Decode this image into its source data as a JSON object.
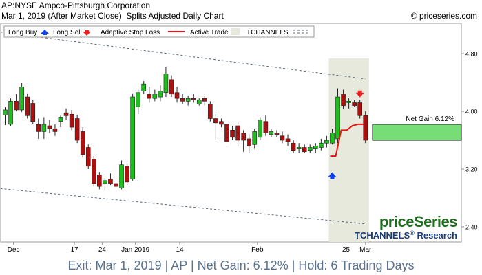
{
  "header": {
    "line1": "AP:NYSE Ampco-Pittsburgh Corporation",
    "line2": "Mar 1, 2019 (After Market Close)  Splits Adjusted Daily Chart",
    "copyright": "© priceseries.com"
  },
  "legend": {
    "long_buy": "Long Buy",
    "long_sell": "Long Sell",
    "adaptive_stop_loss": "Adaptive Stop Loss",
    "active_trade": "Active Trade",
    "tchannels": "TCHANNELS"
  },
  "colors": {
    "up_candle": "#22bb22",
    "down_candle": "#aa1111",
    "stop_loss": "#ee1111",
    "active_trade_band": "#e6e9dc",
    "gain_box": "#77dd77",
    "channel": "#556677",
    "buy_arrow": "#1144ee",
    "sell_arrow": "#ee2222",
    "brand": "#1f6b1f",
    "brand_sub": "#1a3d7a"
  },
  "branding": {
    "name": "priceSeries",
    "sub": "TCHANNELS",
    "reg": "®",
    "research": "Research"
  },
  "annotation": {
    "net_gain_label": "Net Gain 6.12%"
  },
  "banner": {
    "text": "Exit: Mar 1, 2019 | AP | Net Gain: 6.12% | Hold: 6 Trading Days"
  },
  "chart_data": {
    "type": "candlestick",
    "x_tick_labels": [
      "Dec",
      "17",
      "24",
      "Jan 2019",
      "14",
      "Feb",
      "25",
      "Mar"
    ],
    "y_tick_labels": [
      "4.80",
      "4.00",
      "3.20",
      "2.40"
    ],
    "y_ticks": [
      4.8,
      4.0,
      3.2,
      2.4
    ],
    "ylim": [
      2.19,
      5.22
    ],
    "grid": false,
    "legend_position": "top",
    "candles": [
      {
        "o": 3.95,
        "h": 4.06,
        "l": 3.81,
        "c": 4.02
      },
      {
        "o": 3.82,
        "h": 4.18,
        "l": 3.8,
        "c": 4.14
      },
      {
        "o": 4.14,
        "h": 4.24,
        "l": 4.0,
        "c": 4.02
      },
      {
        "o": 4.02,
        "h": 4.4,
        "l": 3.99,
        "c": 4.34
      },
      {
        "o": 4.2,
        "h": 4.25,
        "l": 3.9,
        "c": 3.94
      },
      {
        "o": 4.11,
        "h": 4.16,
        "l": 3.82,
        "c": 3.86
      },
      {
        "o": 3.82,
        "h": 3.9,
        "l": 3.62,
        "c": 3.72
      },
      {
        "o": 3.72,
        "h": 3.92,
        "l": 3.62,
        "c": 3.82
      },
      {
        "o": 3.8,
        "h": 3.88,
        "l": 3.7,
        "c": 3.76
      },
      {
        "o": 3.76,
        "h": 3.82,
        "l": 3.66,
        "c": 3.72
      },
      {
        "o": 3.86,
        "h": 3.94,
        "l": 3.78,
        "c": 3.92
      },
      {
        "o": 3.98,
        "h": 4.04,
        "l": 3.88,
        "c": 3.94
      },
      {
        "o": 3.96,
        "h": 4.02,
        "l": 3.74,
        "c": 3.78
      },
      {
        "o": 3.9,
        "h": 3.95,
        "l": 3.56,
        "c": 3.6
      },
      {
        "o": 3.72,
        "h": 3.78,
        "l": 3.36,
        "c": 3.4
      },
      {
        "o": 3.5,
        "h": 3.54,
        "l": 3.2,
        "c": 3.24
      },
      {
        "o": 3.34,
        "h": 3.38,
        "l": 2.96,
        "c": 3.0
      },
      {
        "o": 3.12,
        "h": 3.16,
        "l": 2.92,
        "c": 2.96
      },
      {
        "o": 3.0,
        "h": 3.08,
        "l": 2.9,
        "c": 3.04
      },
      {
        "o": 3.06,
        "h": 3.14,
        "l": 2.98,
        "c": 3.0
      },
      {
        "o": 3.0,
        "h": 3.08,
        "l": 2.8,
        "c": 2.96
      },
      {
        "o": 2.94,
        "h": 3.32,
        "l": 2.92,
        "c": 3.26
      },
      {
        "o": 3.24,
        "h": 3.28,
        "l": 2.98,
        "c": 3.02
      },
      {
        "o": 3.06,
        "h": 4.25,
        "l": 3.04,
        "c": 4.2
      },
      {
        "o": 4.06,
        "h": 4.3,
        "l": 3.96,
        "c": 4.26
      },
      {
        "o": 4.28,
        "h": 4.42,
        "l": 4.24,
        "c": 4.38
      },
      {
        "o": 4.24,
        "h": 4.34,
        "l": 4.12,
        "c": 4.18
      },
      {
        "o": 4.18,
        "h": 4.3,
        "l": 4.14,
        "c": 4.24
      },
      {
        "o": 4.2,
        "h": 4.36,
        "l": 4.14,
        "c": 4.28
      },
      {
        "o": 4.26,
        "h": 4.62,
        "l": 4.2,
        "c": 4.52
      },
      {
        "o": 4.44,
        "h": 4.5,
        "l": 4.2,
        "c": 4.24
      },
      {
        "o": 4.26,
        "h": 4.34,
        "l": 4.12,
        "c": 4.18
      },
      {
        "o": 4.18,
        "h": 4.24,
        "l": 4.1,
        "c": 4.14
      },
      {
        "o": 4.14,
        "h": 4.22,
        "l": 4.08,
        "c": 4.18
      },
      {
        "o": 4.18,
        "h": 4.24,
        "l": 4.12,
        "c": 4.16
      },
      {
        "o": 4.1,
        "h": 4.18,
        "l": 4.08,
        "c": 4.16
      },
      {
        "o": 4.18,
        "h": 4.22,
        "l": 4.08,
        "c": 4.14
      },
      {
        "o": 4.1,
        "h": 4.14,
        "l": 3.86,
        "c": 3.9
      },
      {
        "o": 3.9,
        "h": 3.96,
        "l": 3.6,
        "c": 3.84
      },
      {
        "o": 3.86,
        "h": 3.9,
        "l": 3.78,
        "c": 3.82
      },
      {
        "o": 3.82,
        "h": 3.86,
        "l": 3.54,
        "c": 3.58
      },
      {
        "o": 3.74,
        "h": 3.8,
        "l": 3.6,
        "c": 3.64
      },
      {
        "o": 3.8,
        "h": 3.86,
        "l": 3.52,
        "c": 3.6
      },
      {
        "o": 3.7,
        "h": 3.74,
        "l": 3.44,
        "c": 3.6
      },
      {
        "o": 3.62,
        "h": 3.68,
        "l": 3.42,
        "c": 3.52
      },
      {
        "o": 3.54,
        "h": 3.76,
        "l": 3.48,
        "c": 3.72
      },
      {
        "o": 3.64,
        "h": 3.92,
        "l": 3.6,
        "c": 3.88
      },
      {
        "o": 3.86,
        "h": 3.94,
        "l": 3.66,
        "c": 3.7
      },
      {
        "o": 3.68,
        "h": 3.76,
        "l": 3.64,
        "c": 3.72
      },
      {
        "o": 3.7,
        "h": 3.74,
        "l": 3.64,
        "c": 3.68
      },
      {
        "o": 3.66,
        "h": 3.72,
        "l": 3.56,
        "c": 3.6
      },
      {
        "o": 3.62,
        "h": 3.68,
        "l": 3.52,
        "c": 3.58
      },
      {
        "o": 3.56,
        "h": 3.6,
        "l": 3.42,
        "c": 3.46
      },
      {
        "o": 3.48,
        "h": 3.56,
        "l": 3.42,
        "c": 3.5
      },
      {
        "o": 3.5,
        "h": 3.54,
        "l": 3.42,
        "c": 3.44
      },
      {
        "o": 3.46,
        "h": 3.54,
        "l": 3.42,
        "c": 3.5
      },
      {
        "o": 3.48,
        "h": 3.56,
        "l": 3.42,
        "c": 3.52
      },
      {
        "o": 3.5,
        "h": 3.62,
        "l": 3.46,
        "c": 3.56
      },
      {
        "o": 3.56,
        "h": 3.66,
        "l": 3.5,
        "c": 3.6
      },
      {
        "o": 3.56,
        "h": 3.76,
        "l": 3.54,
        "c": 3.7
      },
      {
        "o": 3.62,
        "h": 4.32,
        "l": 3.56,
        "c": 4.2
      },
      {
        "o": 4.24,
        "h": 4.3,
        "l": 4.04,
        "c": 4.08
      },
      {
        "o": 4.12,
        "h": 4.18,
        "l": 4.04,
        "c": 4.14
      },
      {
        "o": 4.12,
        "h": 4.16,
        "l": 4.06,
        "c": 4.08
      },
      {
        "o": 4.12,
        "h": 4.16,
        "l": 3.9,
        "c": 3.94
      },
      {
        "o": 3.94,
        "h": 4.0,
        "l": 3.56,
        "c": 3.6
      }
    ],
    "signals": [
      {
        "type": "long_buy",
        "candle_index": 59,
        "price": 3.1
      },
      {
        "type": "long_sell",
        "candle_index": 64,
        "price": 4.25
      }
    ],
    "active_trade_range": [
      59,
      65
    ],
    "adaptive_stop_loss": [
      {
        "candle_index": 59,
        "value": 3.38
      },
      {
        "candle_index": 60,
        "value": 3.38
      },
      {
        "candle_index": 61,
        "value": 3.74
      },
      {
        "candle_index": 62,
        "value": 3.74
      },
      {
        "candle_index": 63,
        "value": 3.8
      },
      {
        "candle_index": 64,
        "value": 3.82
      },
      {
        "candle_index": 65,
        "value": 3.82
      }
    ],
    "tchannels": {
      "upper": [
        {
          "x": 0,
          "y": 5.1
        },
        {
          "x": 65,
          "y": 4.45
        }
      ],
      "lower": [
        {
          "x": 0,
          "y": 2.93
        },
        {
          "x": 65,
          "y": 2.44
        }
      ]
    },
    "gain_box": {
      "from": 3.6,
      "to": 3.82,
      "label": "Net Gain 6.12%"
    }
  }
}
